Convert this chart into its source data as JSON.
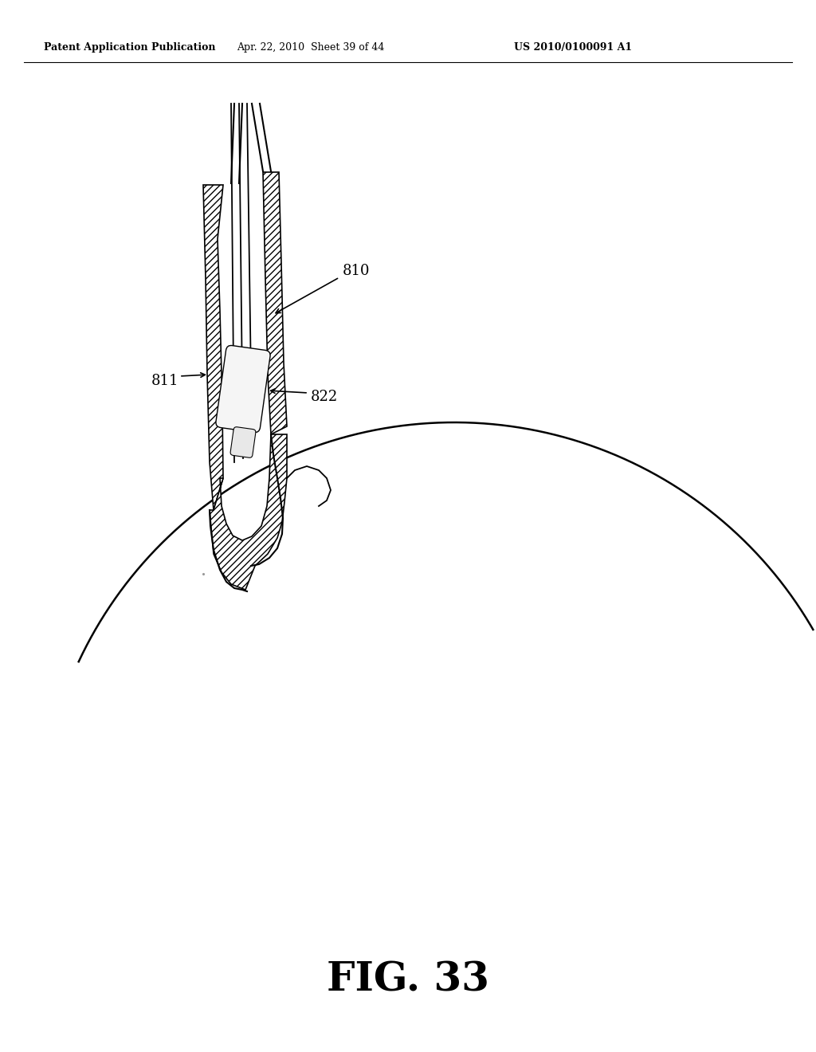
{
  "title": "FIG. 33",
  "header_left": "Patent Application Publication",
  "header_mid": "Apr. 22, 2010  Sheet 39 of 44",
  "header_right": "US 2010/0100091 A1",
  "label_810": "810",
  "label_811": "811",
  "label_822": "822",
  "bg_color": "#ffffff",
  "line_color": "#000000",
  "fig_title_fontsize": 36,
  "header_fontsize": 9,
  "label_fontsize": 13
}
